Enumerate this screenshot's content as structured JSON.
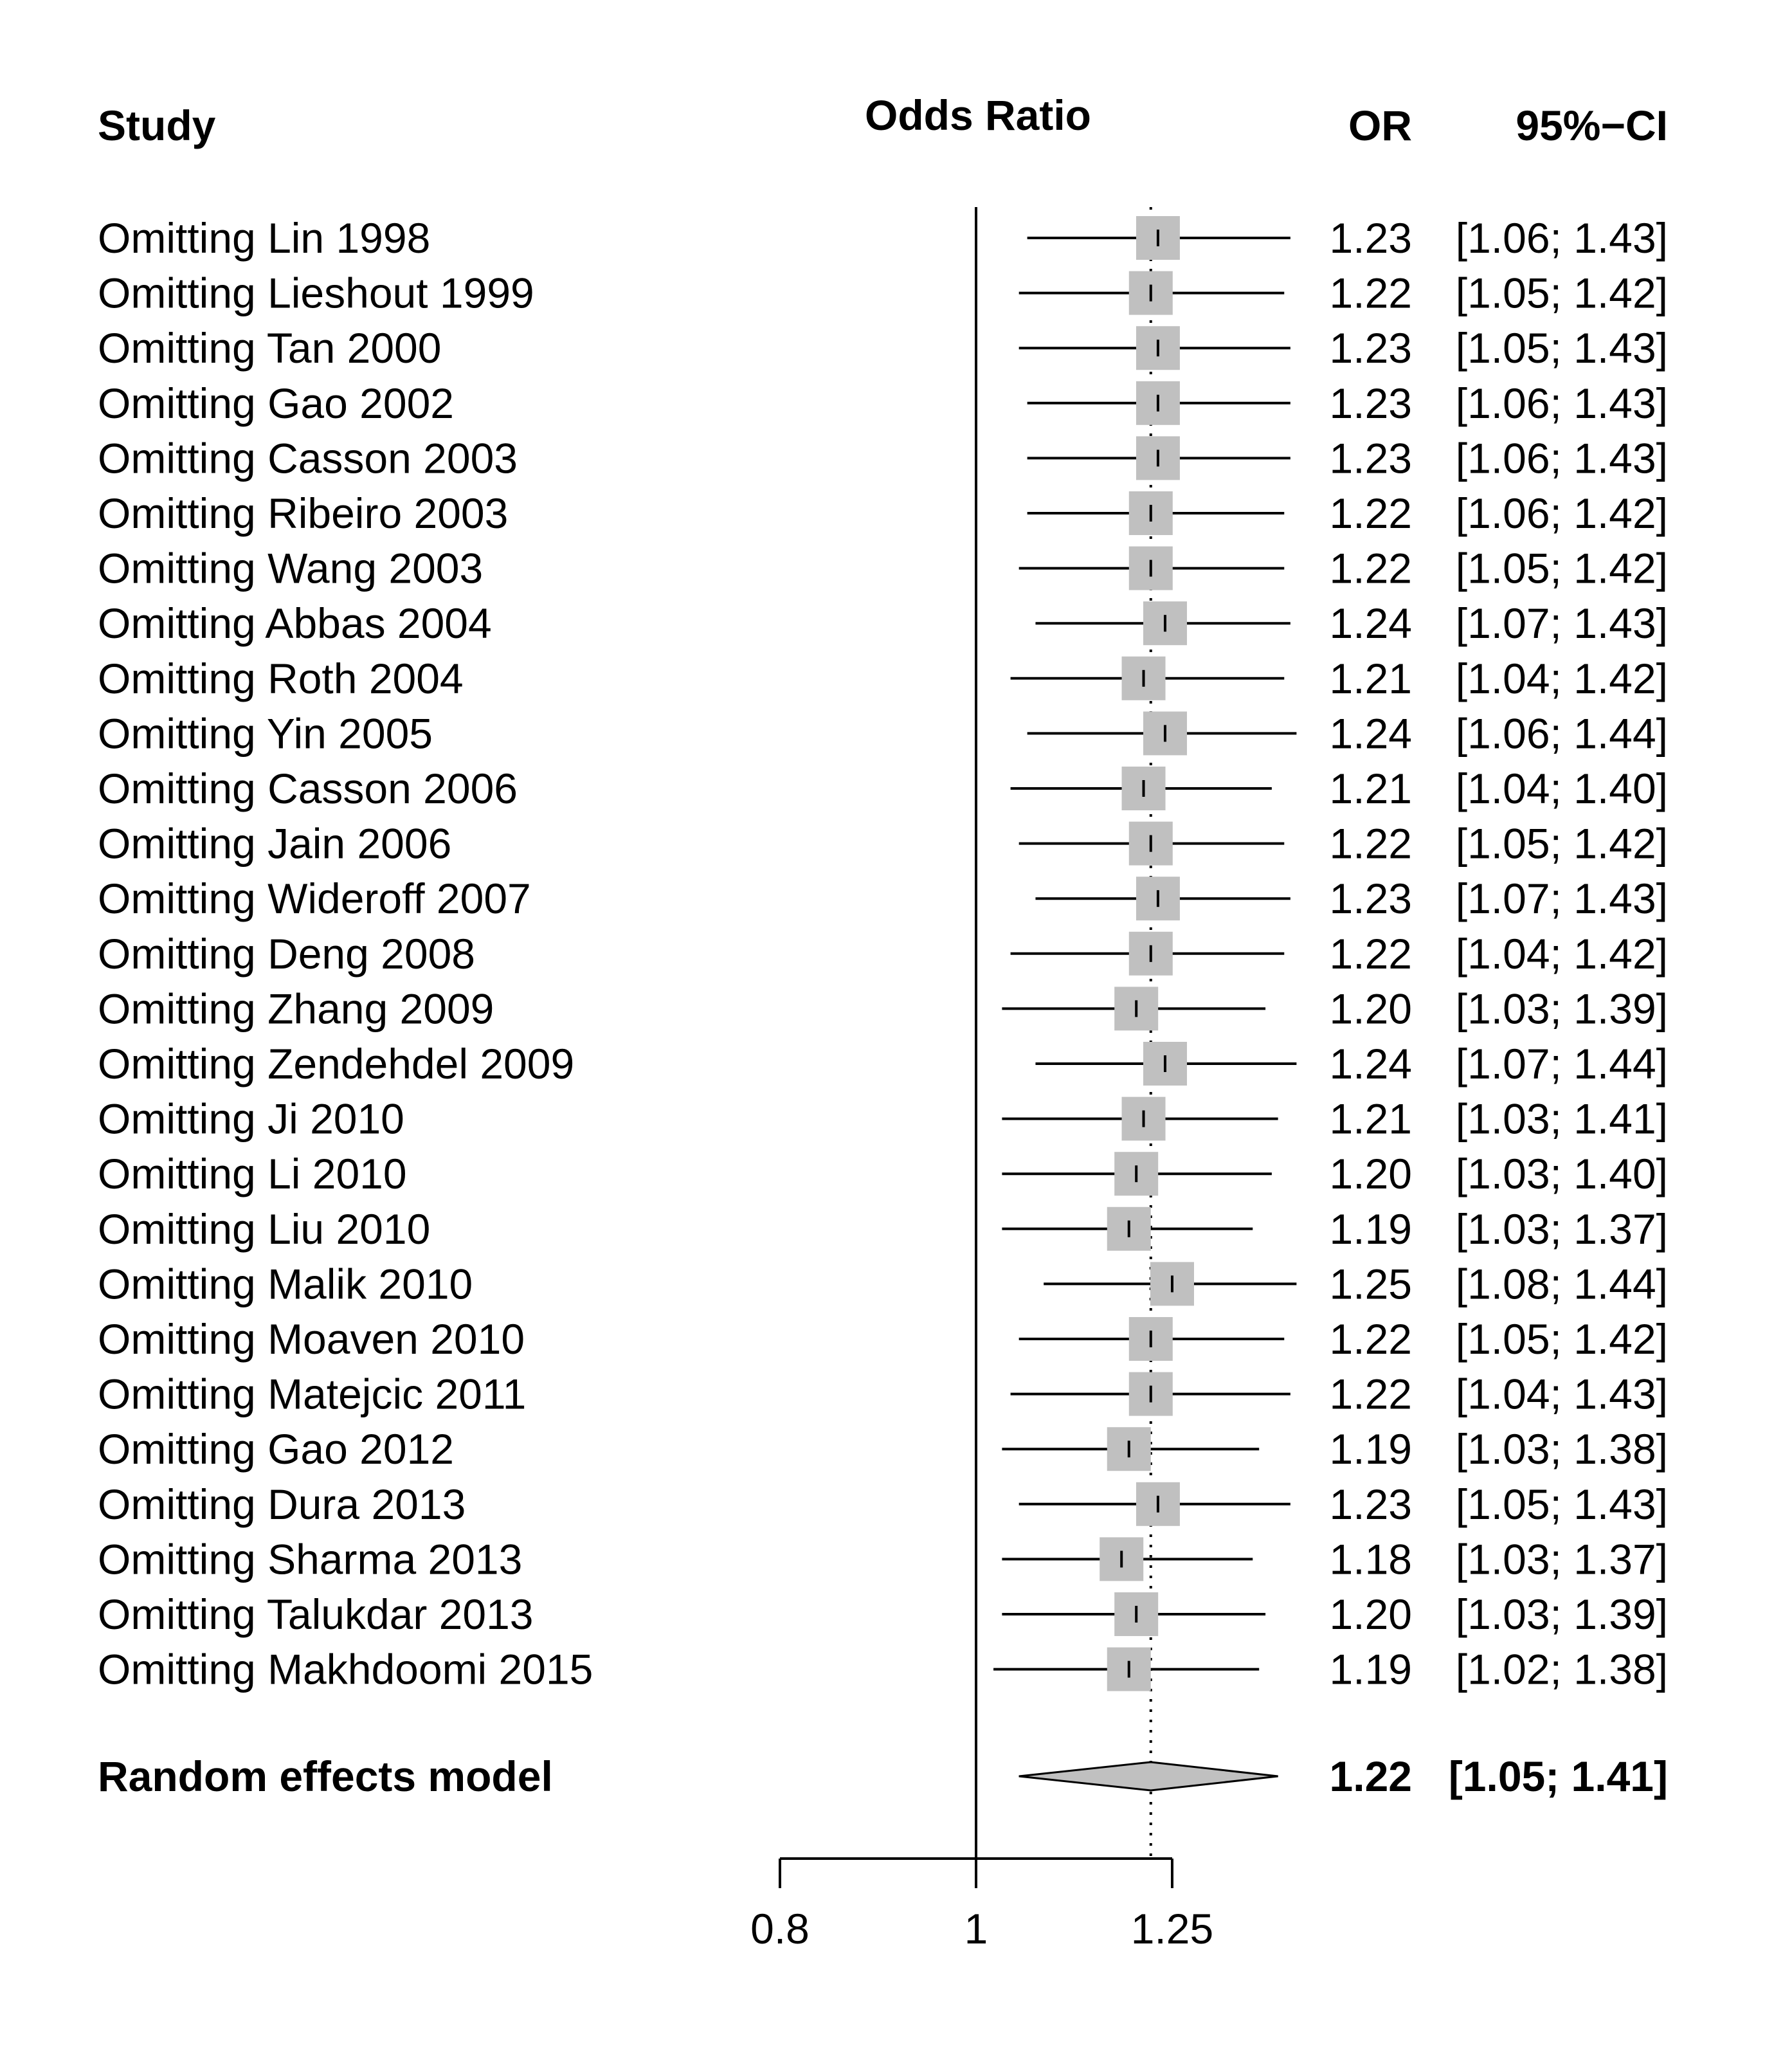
{
  "chart_data": {
    "type": "forest",
    "title": "",
    "headers": {
      "study": "Study",
      "plot": "Odds Ratio",
      "or": "OR",
      "ci": "95%−CI"
    },
    "xscale": "log",
    "xlim": [
      0.8,
      1.25
    ],
    "null_value": 1,
    "ticks": [
      {
        "value": 0.8,
        "label": "0.8"
      },
      {
        "value": 1,
        "label": "1"
      },
      {
        "value": 1.25,
        "label": "1.25"
      }
    ],
    "studies": [
      {
        "label": "Omitting Lin 1998",
        "or": 1.23,
        "lower": 1.06,
        "upper": 1.43,
        "or_text": "1.23",
        "ci_text": "[1.06; 1.43]"
      },
      {
        "label": "Omitting Lieshout 1999",
        "or": 1.22,
        "lower": 1.05,
        "upper": 1.42,
        "or_text": "1.22",
        "ci_text": "[1.05; 1.42]"
      },
      {
        "label": "Omitting Tan 2000",
        "or": 1.23,
        "lower": 1.05,
        "upper": 1.43,
        "or_text": "1.23",
        "ci_text": "[1.05; 1.43]"
      },
      {
        "label": "Omitting Gao 2002",
        "or": 1.23,
        "lower": 1.06,
        "upper": 1.43,
        "or_text": "1.23",
        "ci_text": "[1.06; 1.43]"
      },
      {
        "label": "Omitting Casson 2003",
        "or": 1.23,
        "lower": 1.06,
        "upper": 1.43,
        "or_text": "1.23",
        "ci_text": "[1.06; 1.43]"
      },
      {
        "label": "Omitting Ribeiro 2003",
        "or": 1.22,
        "lower": 1.06,
        "upper": 1.42,
        "or_text": "1.22",
        "ci_text": "[1.06; 1.42]"
      },
      {
        "label": "Omitting Wang 2003",
        "or": 1.22,
        "lower": 1.05,
        "upper": 1.42,
        "or_text": "1.22",
        "ci_text": "[1.05; 1.42]"
      },
      {
        "label": "Omitting Abbas 2004",
        "or": 1.24,
        "lower": 1.07,
        "upper": 1.43,
        "or_text": "1.24",
        "ci_text": "[1.07; 1.43]"
      },
      {
        "label": "Omitting Roth 2004",
        "or": 1.21,
        "lower": 1.04,
        "upper": 1.42,
        "or_text": "1.21",
        "ci_text": "[1.04; 1.42]"
      },
      {
        "label": "Omitting Yin 2005",
        "or": 1.24,
        "lower": 1.06,
        "upper": 1.44,
        "or_text": "1.24",
        "ci_text": "[1.06; 1.44]"
      },
      {
        "label": "Omitting Casson 2006",
        "or": 1.21,
        "lower": 1.04,
        "upper": 1.4,
        "or_text": "1.21",
        "ci_text": "[1.04; 1.40]"
      },
      {
        "label": "Omitting Jain 2006",
        "or": 1.22,
        "lower": 1.05,
        "upper": 1.42,
        "or_text": "1.22",
        "ci_text": "[1.05; 1.42]"
      },
      {
        "label": "Omitting Wideroff 2007",
        "or": 1.23,
        "lower": 1.07,
        "upper": 1.43,
        "or_text": "1.23",
        "ci_text": "[1.07; 1.43]"
      },
      {
        "label": "Omitting Deng 2008",
        "or": 1.22,
        "lower": 1.04,
        "upper": 1.42,
        "or_text": "1.22",
        "ci_text": "[1.04; 1.42]"
      },
      {
        "label": "Omitting Zhang 2009",
        "or": 1.2,
        "lower": 1.03,
        "upper": 1.39,
        "or_text": "1.20",
        "ci_text": "[1.03; 1.39]"
      },
      {
        "label": "Omitting Zendehdel 2009",
        "or": 1.24,
        "lower": 1.07,
        "upper": 1.44,
        "or_text": "1.24",
        "ci_text": "[1.07; 1.44]"
      },
      {
        "label": "Omitting Ji 2010",
        "or": 1.21,
        "lower": 1.03,
        "upper": 1.41,
        "or_text": "1.21",
        "ci_text": "[1.03; 1.41]"
      },
      {
        "label": "Omitting Li 2010",
        "or": 1.2,
        "lower": 1.03,
        "upper": 1.4,
        "or_text": "1.20",
        "ci_text": "[1.03; 1.40]"
      },
      {
        "label": "Omitting Liu 2010",
        "or": 1.19,
        "lower": 1.03,
        "upper": 1.37,
        "or_text": "1.19",
        "ci_text": "[1.03; 1.37]"
      },
      {
        "label": "Omitting Malik 2010",
        "or": 1.25,
        "lower": 1.08,
        "upper": 1.44,
        "or_text": "1.25",
        "ci_text": "[1.08; 1.44]"
      },
      {
        "label": "Omitting Moaven 2010",
        "or": 1.22,
        "lower": 1.05,
        "upper": 1.42,
        "or_text": "1.22",
        "ci_text": "[1.05; 1.42]"
      },
      {
        "label": "Omitting Matejcic 2011",
        "or": 1.22,
        "lower": 1.04,
        "upper": 1.43,
        "or_text": "1.22",
        "ci_text": "[1.04; 1.43]"
      },
      {
        "label": "Omitting Gao 2012",
        "or": 1.19,
        "lower": 1.03,
        "upper": 1.38,
        "or_text": "1.19",
        "ci_text": "[1.03; 1.38]"
      },
      {
        "label": "Omitting Dura 2013",
        "or": 1.23,
        "lower": 1.05,
        "upper": 1.43,
        "or_text": "1.23",
        "ci_text": "[1.05; 1.43]"
      },
      {
        "label": "Omitting Sharma 2013",
        "or": 1.18,
        "lower": 1.03,
        "upper": 1.37,
        "or_text": "1.18",
        "ci_text": "[1.03; 1.37]"
      },
      {
        "label": "Omitting Talukdar 2013",
        "or": 1.2,
        "lower": 1.03,
        "upper": 1.39,
        "or_text": "1.20",
        "ci_text": "[1.03; 1.39]"
      },
      {
        "label": "Omitting Makhdoomi 2015",
        "or": 1.19,
        "lower": 1.02,
        "upper": 1.38,
        "or_text": "1.19",
        "ci_text": "[1.02; 1.38]"
      }
    ],
    "pooled": {
      "label": "Random effects model",
      "or": 1.22,
      "lower": 1.05,
      "upper": 1.41,
      "or_text": "1.22",
      "ci_text": "[1.05; 1.41]"
    },
    "colors": {
      "box": "#c0c0c0",
      "diamond": "#c0c0c0",
      "line": "#000000"
    }
  }
}
